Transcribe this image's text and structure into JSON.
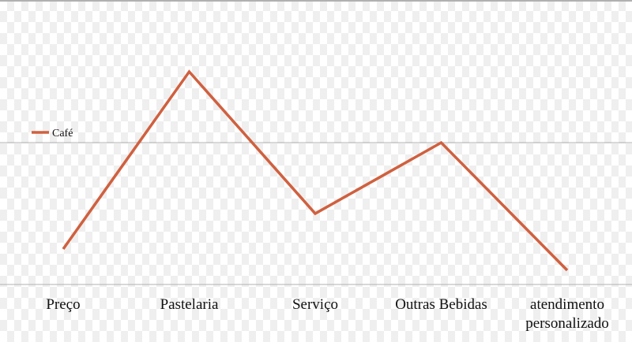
{
  "chart_data": {
    "type": "line",
    "title": "",
    "xlabel": "",
    "ylabel": "",
    "categories": [
      "Preço",
      "Pastelaria",
      "Serviço",
      "Outras Bebidas",
      "atendimento personalizado"
    ],
    "tick_lines": [
      [
        "Preço"
      ],
      [
        "Pastelaria"
      ],
      [
        "Serviço"
      ],
      [
        "Outras Bebidas"
      ],
      [
        "atendimento",
        "personalizado"
      ]
    ],
    "series": [
      {
        "name": "Café",
        "color": "#d0603f",
        "values": [
          0.25,
          1.5,
          0.5,
          1.0,
          0.1
        ]
      }
    ],
    "ylim": [
      0,
      2
    ],
    "gridlines": [
      0,
      1,
      2
    ],
    "grid": true,
    "legend": "left",
    "gridline_color": "#b0b0b0"
  }
}
